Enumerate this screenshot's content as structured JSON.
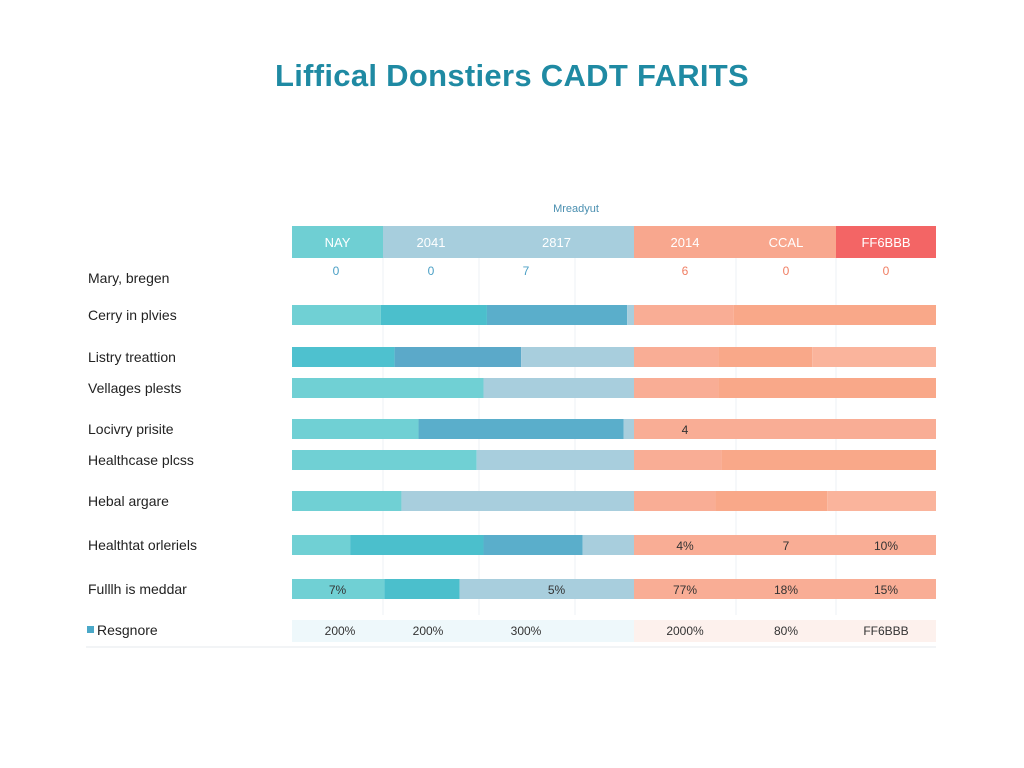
{
  "chart_data": {
    "type": "bar",
    "title": "Liffical Donstiers CADT FARITS",
    "subtitle": "Mreadyut",
    "columns": [
      {
        "name": "NAY",
        "color": "#6fcfd3",
        "zero_value": "0",
        "footer": "200%"
      },
      {
        "name": "2041",
        "color": "#a7cedd",
        "zero_value": "0",
        "footer": "200%"
      },
      {
        "name": "2817",
        "color": "#a7cedd",
        "zero_value": "7",
        "footer": "300%"
      },
      {
        "name": "2014",
        "color": "#f8a78e",
        "zero_value": "6",
        "footer": "2000%"
      },
      {
        "name": "CCAL",
        "color": "#f8a78e",
        "zero_value": "0",
        "footer": "80%"
      },
      {
        "name": "FF6BBB",
        "color": "#f36565",
        "zero_value": "0",
        "footer": "FF6BBB"
      }
    ],
    "header_row_label": "Mary, bregen",
    "footer_row_label": "Resgnore",
    "rows": [
      {
        "label": "Cerry in plvies",
        "left": [
          {
            "value": 0.26,
            "color": "#70d0d4"
          },
          {
            "value": 0.31,
            "color": "#4bbfcc"
          },
          {
            "value": 0.41,
            "color": "#5aaecb"
          },
          {
            "value": 0.02,
            "color": "#a8cedd"
          }
        ],
        "right": [
          {
            "value": 0.33,
            "color": "#f9ad95"
          },
          {
            "value": 0.67,
            "color": "#f9a889"
          }
        ],
        "labels": []
      },
      {
        "label": "Listry treattion",
        "left": [
          {
            "value": 0.3,
            "color": "#4ec1cf"
          },
          {
            "value": 0.37,
            "color": "#5ba9c9"
          },
          {
            "value": 0.33,
            "color": "#a8cedd"
          }
        ],
        "right": [
          {
            "value": 0.28,
            "color": "#f9ad95"
          },
          {
            "value": 0.31,
            "color": "#f9a889"
          },
          {
            "value": 0.41,
            "color": "#fab49c"
          }
        ],
        "labels": []
      },
      {
        "label": "Vellages plests",
        "left": [
          {
            "value": 0.56,
            "color": "#70d0d4"
          },
          {
            "value": 0.44,
            "color": "#a8cedd"
          }
        ],
        "right": [
          {
            "value": 0.28,
            "color": "#f9ad95"
          },
          {
            "value": 0.72,
            "color": "#f9a889"
          }
        ],
        "labels": []
      },
      {
        "label": "Locivry prisite",
        "left": [
          {
            "value": 0.37,
            "color": "#70d0d4"
          },
          {
            "value": 0.6,
            "color": "#5aaecb"
          },
          {
            "value": 0.03,
            "color": "#a8cedd"
          }
        ],
        "right": [
          {
            "value": 1.0,
            "color": "#f9ad95"
          }
        ],
        "labels": [
          {
            "col": 3,
            "text": "4"
          }
        ]
      },
      {
        "label": "Healthcase plcss",
        "left": [
          {
            "value": 0.54,
            "color": "#70d0d4"
          },
          {
            "value": 0.46,
            "color": "#a8cedd"
          }
        ],
        "right": [
          {
            "value": 0.29,
            "color": "#f9ad95"
          },
          {
            "value": 0.71,
            "color": "#f9a889"
          }
        ],
        "labels": []
      },
      {
        "label": "Hebal argare",
        "left": [
          {
            "value": 0.32,
            "color": "#70d0d4"
          },
          {
            "value": 0.68,
            "color": "#a8cedd"
          }
        ],
        "right": [
          {
            "value": 0.27,
            "color": "#f9ad95"
          },
          {
            "value": 0.37,
            "color": "#f9a889"
          },
          {
            "value": 0.36,
            "color": "#fab49c"
          }
        ],
        "labels": []
      },
      {
        "label": "Healthtat orleriels",
        "left": [
          {
            "value": 0.17,
            "color": "#70d0d4"
          },
          {
            "value": 0.39,
            "color": "#4bbfcc"
          },
          {
            "value": 0.29,
            "color": "#5aaecb"
          },
          {
            "value": 0.15,
            "color": "#a8cedd"
          }
        ],
        "right": [
          {
            "value": 1.0,
            "color": "#f9ad95"
          }
        ],
        "labels": [
          {
            "col": 3,
            "text": "4%"
          },
          {
            "col": 4,
            "text": "7"
          },
          {
            "col": 5,
            "text": "10%"
          }
        ]
      },
      {
        "label": "Fulllh is meddar",
        "left": [
          {
            "value": 0.27,
            "color": "#70d0d4"
          },
          {
            "value": 0.22,
            "color": "#4bbfcc"
          },
          {
            "value": 0.51,
            "color": "#a8cedd"
          }
        ],
        "right": [
          {
            "value": 1.0,
            "color": "#f9ad95"
          }
        ],
        "labels": [
          {
            "col": 0,
            "text": "7%"
          },
          {
            "col": 2,
            "text": "5%"
          },
          {
            "col": 3,
            "text": "77%"
          },
          {
            "col": 4,
            "text": "18%"
          },
          {
            "col": 5,
            "text": "15%"
          }
        ]
      }
    ]
  }
}
